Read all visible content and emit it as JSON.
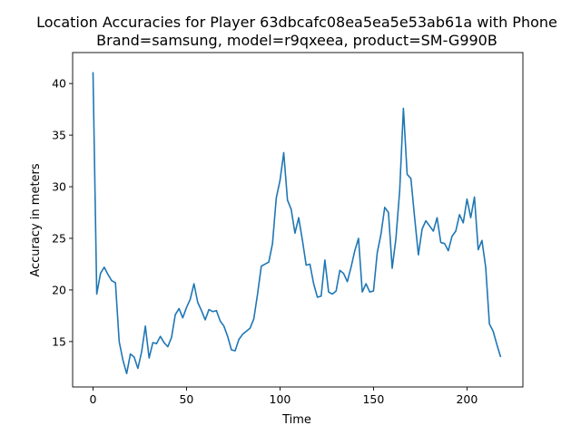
{
  "chart_data": {
    "type": "line",
    "title": "Location Accuracies for Player 63dbcafc08ea5ea5e53ab61a with Phone",
    "subtitle": "Brand=samsung, model=r9qxeea, product=SM-G990B",
    "xlabel": "Time",
    "ylabel": "Accuracy in meters",
    "xlim": [
      -10.9,
      229.9
    ],
    "ylim": [
      10.6,
      43.0
    ],
    "xticks": [
      0,
      50,
      100,
      150,
      200
    ],
    "yticks": [
      15,
      20,
      25,
      30,
      35,
      40
    ],
    "grid": false,
    "line_color": "#1f77b4",
    "series": [
      {
        "x": [
          0,
          2,
          4,
          6,
          8,
          10,
          12,
          14,
          16,
          18,
          20,
          22,
          24,
          26,
          28,
          30,
          32,
          34,
          36,
          38,
          40,
          42,
          44,
          46,
          48,
          50,
          52,
          54,
          56,
          58,
          60,
          62,
          64,
          66,
          68,
          70,
          72,
          74,
          76,
          78,
          80,
          82,
          84,
          86,
          88,
          90,
          92,
          94,
          96,
          98,
          100,
          102,
          104,
          106,
          108,
          110,
          112,
          114,
          116,
          118,
          120,
          122,
          124,
          126,
          128,
          130,
          132,
          134,
          136,
          138,
          140,
          142,
          144,
          146,
          148,
          150,
          152,
          154,
          156,
          158,
          160,
          162,
          164,
          166,
          168,
          170,
          172,
          174,
          176,
          178,
          180,
          182,
          184,
          186,
          188,
          190,
          192,
          194,
          196,
          198,
          200,
          202,
          204,
          206,
          208,
          210,
          212,
          214,
          216,
          218
        ],
        "values": [
          41.1,
          19.6,
          21.6,
          22.2,
          21.5,
          20.9,
          20.7,
          15.0,
          13.2,
          11.9,
          13.8,
          13.5,
          12.4,
          14.0,
          16.5,
          13.4,
          14.9,
          14.8,
          15.5,
          14.9,
          14.5,
          15.4,
          17.6,
          18.2,
          17.3,
          18.3,
          19.1,
          20.6,
          18.8,
          18.0,
          17.1,
          18.1,
          17.9,
          18.0,
          17.0,
          16.5,
          15.5,
          14.2,
          14.1,
          15.2,
          15.7,
          16.0,
          16.3,
          17.2,
          19.6,
          22.3,
          22.5,
          22.7,
          24.5,
          28.9,
          30.6,
          33.3,
          28.7,
          27.8,
          25.5,
          27.0,
          24.8,
          22.4,
          22.5,
          20.6,
          19.3,
          19.4,
          22.9,
          19.8,
          19.6,
          19.9,
          21.9,
          21.6,
          20.8,
          22.2,
          23.8,
          25.0,
          19.8,
          20.6,
          19.8,
          19.9,
          23.6,
          25.4,
          28.0,
          27.5,
          22.1,
          25.0,
          29.6,
          37.6,
          31.2,
          30.8,
          27.0,
          23.4,
          25.9,
          26.7,
          26.2,
          25.7,
          27.0,
          24.6,
          24.5,
          23.8,
          25.2,
          25.7,
          27.3,
          26.5,
          28.8,
          27.0,
          29.0,
          23.9,
          24.8,
          22.2,
          16.7,
          16.0,
          14.7,
          13.5
        ]
      }
    ]
  }
}
